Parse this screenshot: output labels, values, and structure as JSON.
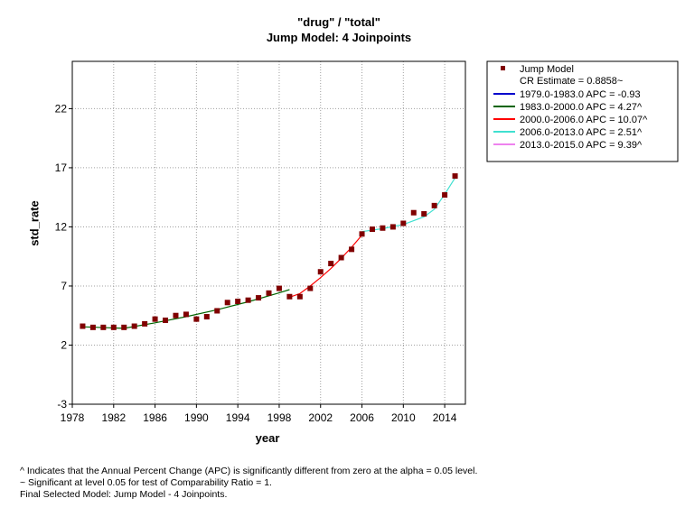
{
  "chart_data": {
    "type": "line",
    "title": "\"drug\" / \"total\"",
    "subtitle": "Jump Model: 4 Joinpoints",
    "xlabel": "year",
    "ylabel": "std_rate",
    "xlim": [
      1978,
      2016
    ],
    "ylim": [
      -3,
      26
    ],
    "x_ticks": [
      1978,
      1982,
      1986,
      1990,
      1994,
      1998,
      2002,
      2006,
      2010,
      2014
    ],
    "y_ticks": [
      -3,
      2,
      7,
      12,
      17,
      22
    ],
    "grid": true,
    "legend_position": "right",
    "observed": {
      "name": "Jump Model",
      "color": "#800000",
      "x": [
        1979,
        1980,
        1981,
        1982,
        1983,
        1984,
        1985,
        1986,
        1987,
        1988,
        1989,
        1990,
        1991,
        1992,
        1993,
        1994,
        1995,
        1996,
        1997,
        1998,
        1999,
        2000,
        2001,
        2002,
        2003,
        2004,
        2005,
        2006,
        2007,
        2008,
        2009,
        2010,
        2011,
        2012,
        2013,
        2014,
        2015
      ],
      "y": [
        3.6,
        3.5,
        3.5,
        3.5,
        3.5,
        3.6,
        3.8,
        4.2,
        4.1,
        4.5,
        4.6,
        4.2,
        4.4,
        4.9,
        5.6,
        5.7,
        5.8,
        6.0,
        6.4,
        6.8,
        6.1,
        6.1,
        6.8,
        8.2,
        8.9,
        9.4,
        10.1,
        11.4,
        11.8,
        11.9,
        12.0,
        12.3,
        13.2,
        13.1,
        13.8,
        14.7,
        16.3
      ]
    },
    "fitted_segments": [
      {
        "label": "1979.0-1983.0 APC  = -0.93",
        "color": "#0000cc",
        "x": [
          1979,
          1980,
          1981,
          1982,
          1983
        ],
        "y": [
          3.55,
          3.52,
          3.49,
          3.45,
          3.42
        ]
      },
      {
        "label": "1983.0-2000.0 APC  = 4.27^",
        "color": "#006400",
        "x": [
          1983,
          1986,
          1989,
          1992,
          1995,
          1998,
          1999
        ],
        "y": [
          3.42,
          3.88,
          4.4,
          4.99,
          5.66,
          6.42,
          6.69
        ]
      },
      {
        "label": "2000.0-2006.0 APC  = 10.07^",
        "color": "#ff0000",
        "x": [
          1999,
          2000,
          2001,
          2002,
          2003,
          2004,
          2005,
          2006
        ],
        "y": [
          6.05,
          6.36,
          7.0,
          7.71,
          8.48,
          9.34,
          10.28,
          11.3
        ]
      },
      {
        "label": "2006.0-2013.0 APC  =  2.51^",
        "color": "#40e0d0",
        "x": [
          2006,
          2008,
          2010,
          2012,
          2013
        ],
        "y": [
          11.6,
          11.85,
          12.2,
          12.85,
          13.5
        ]
      },
      {
        "label": "2013.0-2015.0 APC  =  9.39^",
        "color": "#ee82ee",
        "x": [
          2013,
          2014,
          2015
        ],
        "y": [
          13.5,
          14.76,
          16.15
        ]
      }
    ],
    "fit_curve": {
      "color": "#006400",
      "x": [
        1979,
        1983,
        1986,
        1989,
        1992,
        1995,
        1998,
        1999
      ],
      "y": [
        3.55,
        3.42,
        3.88,
        4.4,
        4.99,
        5.66,
        6.42,
        6.69
      ]
    },
    "fit_curve_2": {
      "color": "#ff0000",
      "x": [
        1999,
        2000,
        2001,
        2002,
        2003,
        2004,
        2005,
        2006
      ],
      "y": [
        6.05,
        6.36,
        7.0,
        7.71,
        8.48,
        9.34,
        10.28,
        11.3
      ]
    },
    "fit_curve_3": {
      "color": "#40e0d0",
      "x": [
        2006,
        2008,
        2010,
        2012,
        2013,
        2014,
        2015
      ],
      "y": [
        11.6,
        11.85,
        12.2,
        12.85,
        13.5,
        14.76,
        16.15
      ]
    },
    "legend": {
      "marker_label": "Jump Model",
      "cr_estimate": "CR Estimate = 0.8858~"
    }
  },
  "footnotes": [
    "^ Indicates that the Annual Percent Change (APC) is significantly different from zero at the alpha = 0.05 level.",
    "~ Significant at level 0.05 for test of Comparability Ratio = 1.",
    "Final Selected Model: Jump Model - 4 Joinpoints."
  ]
}
